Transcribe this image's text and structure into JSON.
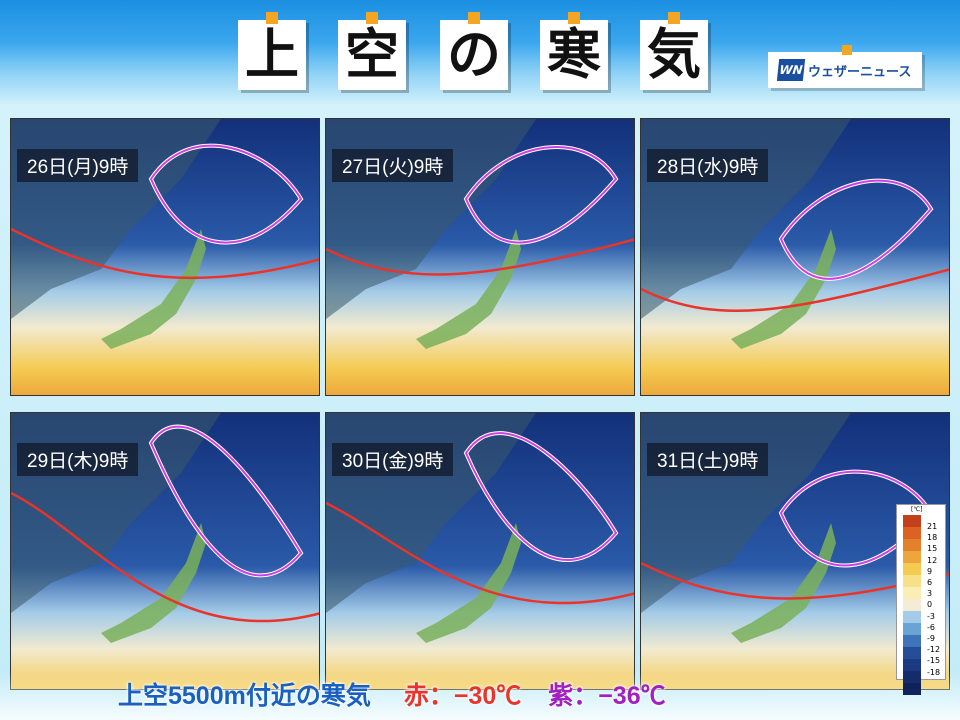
{
  "title": {
    "chars": [
      "上",
      "空",
      "の",
      "寒",
      "気"
    ]
  },
  "logo": {
    "mark": "WN",
    "text": "ウェザーニュース"
  },
  "panels": [
    {
      "label": "26日(月)9時"
    },
    {
      "label": "27日(火)9時"
    },
    {
      "label": "28日(水)9時"
    },
    {
      "label": "29日(木)9時"
    },
    {
      "label": "30日(金)9時"
    },
    {
      "label": "31日(土)9時"
    }
  ],
  "caption": {
    "main": "上空5500m付近の寒気",
    "red_label": "赤：−30℃",
    "purple_label": "紫：−36℃"
  },
  "colors": {
    "red_contour": "#e8342a",
    "purple_contour": "#d040e0"
  },
  "legend": {
    "unit": "[℃]",
    "ticks": [
      "21",
      "18",
      "15",
      "12",
      "9",
      "6",
      "3",
      "0",
      "-3",
      "-6",
      "-9",
      "-12",
      "-15",
      "-18"
    ],
    "colors": [
      "#c4401c",
      "#dc6224",
      "#e4802c",
      "#eca63c",
      "#f4ca50",
      "#f8e08a",
      "#faeeb4",
      "#f4ecd4",
      "#a4cce8",
      "#6aa4d4",
      "#3e74b8",
      "#264e98",
      "#1c3a80",
      "#162c6a",
      "#10225a"
    ]
  }
}
